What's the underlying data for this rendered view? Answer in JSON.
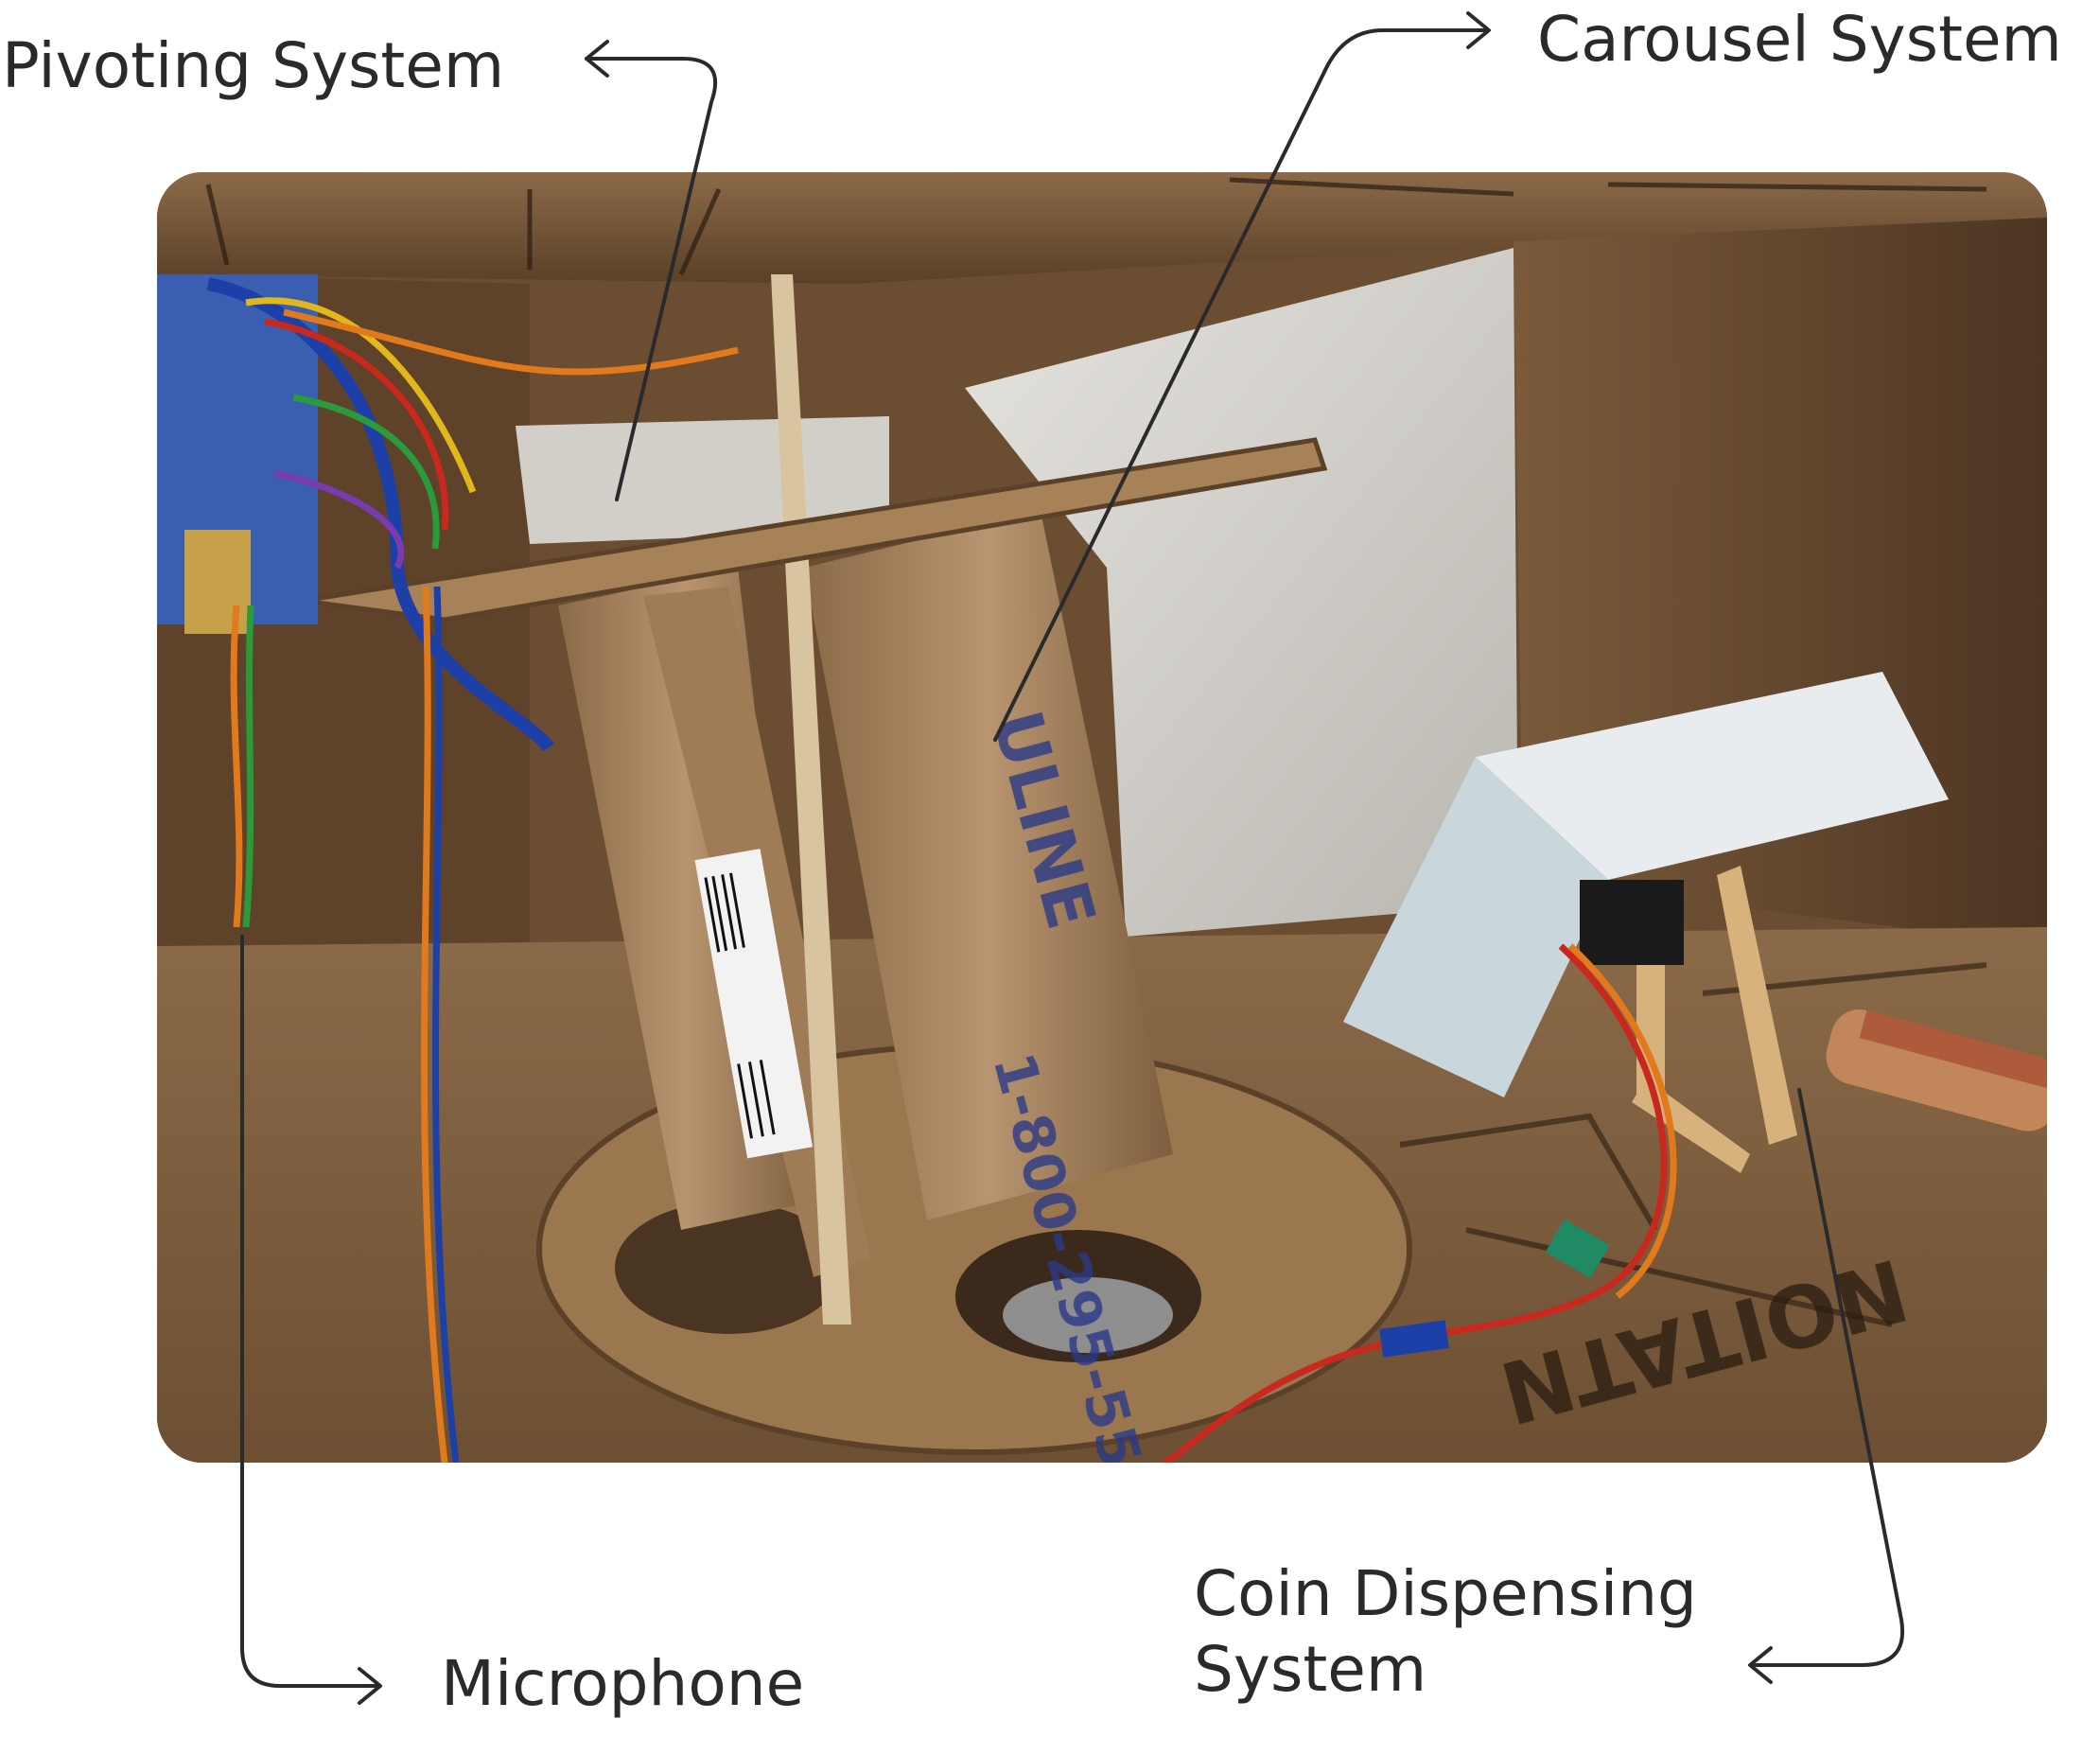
{
  "labels": {
    "pivoting": "Pivoting System",
    "carousel": "Carousel System",
    "microphone": "Microphone",
    "coin_line1": "Coin Dispensing",
    "coin_line2": "System"
  },
  "photo": {
    "subject": "cardboard prototype with tube carousel, servo dispenser and wiring",
    "colors": {
      "cardboard": "#a37d57",
      "cardboard_dark": "#6e5035",
      "shadow": "#3b2a1b",
      "white_board": "#d9d6d0",
      "wire_blue": "#1d3fa8",
      "wire_orange": "#e07a1c",
      "wire_red": "#c8281e"
    }
  },
  "annotation_color": "#2a2a2a"
}
